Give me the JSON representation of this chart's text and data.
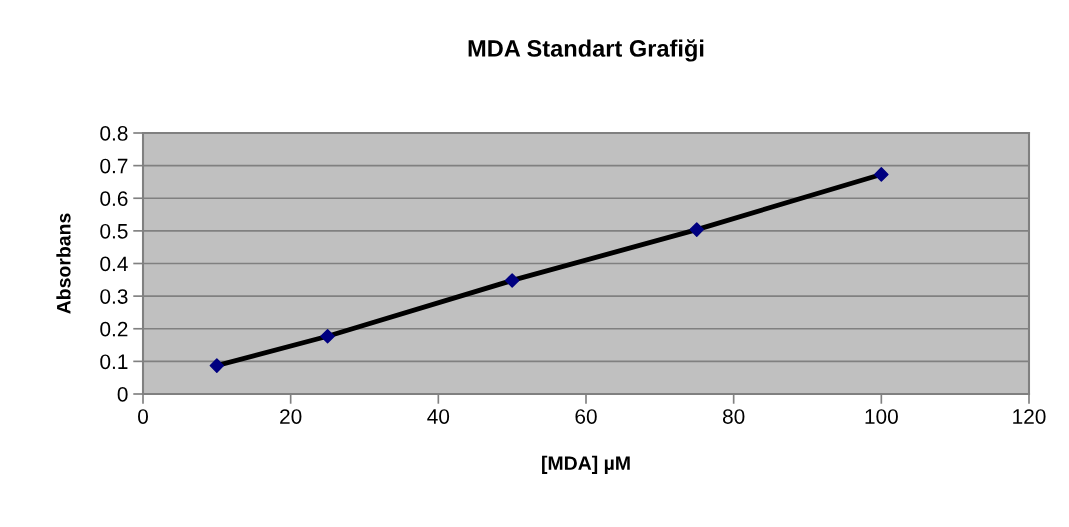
{
  "chart_data": {
    "type": "line",
    "title": "MDA Standart Grafiği",
    "xlabel": "[MDA] µM",
    "ylabel": "Absorbans",
    "x": [
      10,
      25,
      50,
      75,
      100
    ],
    "series": [
      {
        "color": "#000000",
        "marker": "none",
        "line_style": "solid",
        "values": [
          0.087,
          0.177,
          0.348,
          0.504,
          0.673
        ]
      },
      {
        "type": "scatter",
        "color": "#000080",
        "marker": "diamond",
        "values": [
          0.087,
          0.177,
          0.348,
          0.504,
          0.673
        ]
      }
    ],
    "xlim": [
      0,
      120
    ],
    "xticks": [
      0,
      20,
      40,
      60,
      80,
      100,
      120
    ],
    "ylim": [
      0,
      0.8
    ],
    "yticks": [
      0,
      0.1,
      0.2,
      0.3,
      0.4,
      0.5,
      0.6,
      0.7,
      0.8
    ],
    "grid": "y"
  }
}
